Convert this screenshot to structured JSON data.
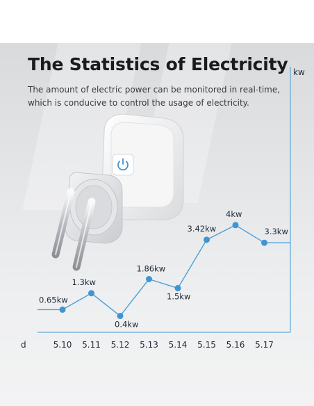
{
  "header": {
    "title": "The Statistics of Electricity",
    "subtitle_line1": "The amount of electric power can be monitored in real-time,",
    "subtitle_line2": "which is conducive to control the usage of electricity."
  },
  "colors": {
    "line": "#4a9fd8",
    "point": "#3f94d3",
    "text": "#1f2a3a"
  },
  "chart_data": {
    "type": "line",
    "x_unit": "d",
    "y_unit": "kw",
    "categories": [
      "5.10",
      "5.11",
      "5.12",
      "5.13",
      "5.14",
      "5.15",
      "5.16",
      "5.17"
    ],
    "values": [
      0.65,
      1.3,
      0.4,
      1.86,
      1.5,
      3.42,
      4,
      3.3
    ],
    "data_labels": [
      "0.65kw",
      "1.3kw",
      "0.4kw",
      "1.86kw",
      "1.5kw",
      "3.42kw",
      "4kw",
      "3.3kw"
    ],
    "grid": false,
    "legend": "none"
  }
}
